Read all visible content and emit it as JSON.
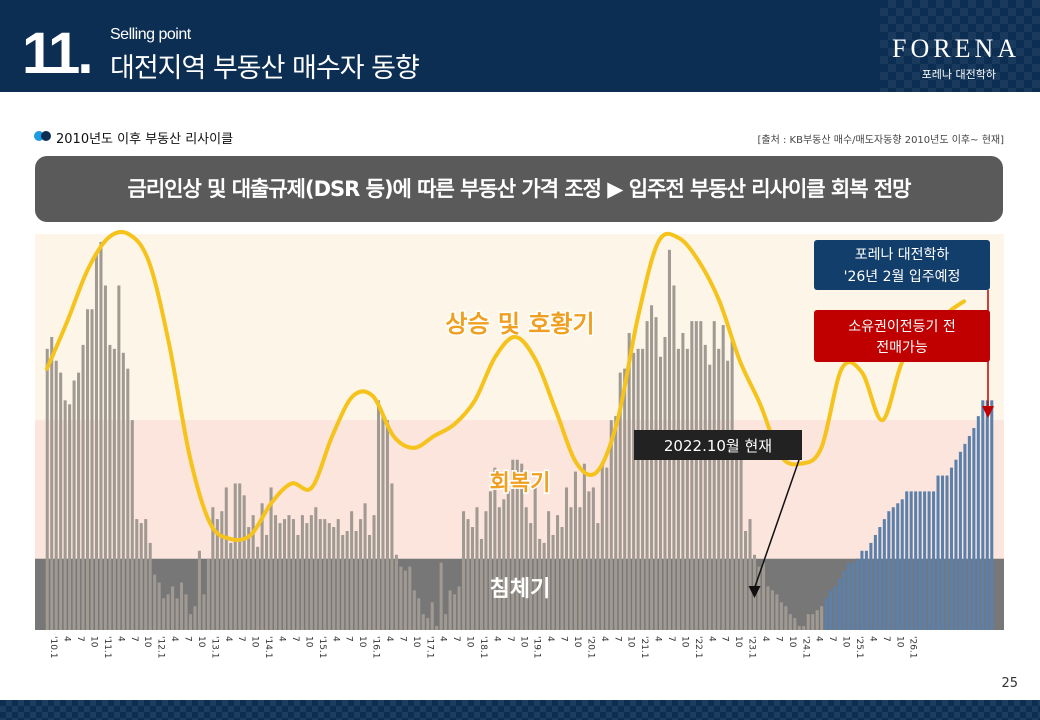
{
  "header": {
    "section_number": "11.",
    "section_subtitle": "Selling point",
    "section_title": "대전지역 부동산 매수자 동향",
    "brand": "FORENA",
    "brand_sub": "포레나 대전학하"
  },
  "section_label": "2010년도 이후 부동산 리사이클",
  "source": "[출처 : KB부동산 매수/매도자동향 2010년도 이후~ 현재]",
  "banner": "금리인상 및 대출규제(DSR 등)에 따른 부동산 가격 조정 ▶ 입주전 부동산 리사이클 회복 전망",
  "page_number": "25",
  "colors": {
    "header": "#0b2e52",
    "bar_history": "#a09a92",
    "bar_projection": "#5b80ac",
    "curve": "#f5c31c",
    "zone_boom": "#fdf6e8",
    "zone_recovery": "#fbe5dc",
    "zone_slump": "#777777",
    "zone_label": "#f0a020",
    "accent_red": "#c00000",
    "accent_navy": "#123e6b"
  },
  "chart_data": {
    "type": "bar",
    "title": "",
    "xlabel": "",
    "ylabel": "",
    "ylim": [
      0,
      100
    ],
    "x_tick_labels": [
      "'10.1",
      "4",
      "7",
      "10",
      "'11.1",
      "4",
      "7",
      "10",
      "'12.1",
      "4",
      "7",
      "10",
      "'13.1",
      "4",
      "7",
      "10",
      "'14.1",
      "4",
      "7",
      "10",
      "'15.1",
      "4",
      "7",
      "10",
      "'16.1",
      "4",
      "7",
      "10",
      "'17.1",
      "4",
      "7",
      "10",
      "'18.1",
      "4",
      "7",
      "10",
      "'19.1",
      "4",
      "7",
      "10",
      "'20.1",
      "4",
      "7",
      "10",
      "'21.1",
      "4",
      "7",
      "10",
      "'22.1",
      "4",
      "7",
      "10",
      "'23.1",
      "4",
      "7",
      "10",
      "'24.1",
      "4",
      "7",
      "10",
      "'25.1",
      "4",
      "7",
      "10",
      "'26.1"
    ],
    "zones": [
      {
        "label": "상승 및 호황기",
        "from": 53,
        "to": 100
      },
      {
        "label": "회복기",
        "from": 18,
        "to": 53
      },
      {
        "label": "침체기",
        "from": 0,
        "to": 18
      }
    ],
    "series": [
      {
        "values": [
          71,
          74,
          68,
          65,
          58,
          57,
          63,
          65,
          72,
          81,
          81,
          95,
          98,
          87,
          72,
          71,
          87,
          70,
          66,
          53,
          28,
          27,
          28,
          22,
          14,
          12,
          8,
          9,
          11,
          8,
          12,
          9,
          4,
          6,
          20,
          9,
          18,
          31,
          28,
          30,
          36,
          22,
          37,
          37,
          34,
          26,
          29,
          21,
          32,
          24,
          36,
          29,
          27,
          28,
          29,
          28,
          24,
          29,
          27,
          29,
          31,
          28,
          28,
          27,
          26,
          28,
          24,
          25,
          30,
          25,
          28,
          32,
          24,
          29,
          58,
          54,
          53,
          37,
          19,
          16,
          15,
          16,
          10,
          8,
          4,
          3,
          7,
          1,
          17,
          4,
          10,
          9,
          11,
          30,
          28,
          26,
          31,
          23,
          30,
          35,
          41,
          31,
          33,
          35,
          43,
          43,
          42,
          31,
          27,
          37,
          23,
          22,
          30,
          24,
          29,
          26,
          36,
          31,
          40,
          31,
          42,
          35,
          36,
          27,
          42,
          41,
          53,
          54,
          65,
          66,
          75,
          70,
          71,
          71,
          78,
          82,
          79,
          69,
          74,
          96,
          87,
          71,
          75,
          71,
          78,
          78,
          78,
          72,
          67,
          78,
          71,
          77,
          68,
          73,
          50,
          44,
          25,
          28,
          19,
          16,
          17,
          11,
          10,
          9,
          7,
          6,
          4,
          3,
          1,
          1,
          4,
          4,
          5,
          6,
          8,
          10,
          11,
          13,
          15,
          17,
          17,
          18,
          20,
          20,
          22,
          24,
          26,
          28,
          30,
          31,
          32,
          33,
          35,
          35,
          35,
          35,
          35,
          35,
          35,
          39,
          39,
          39,
          41,
          43,
          45,
          47,
          49,
          51,
          54,
          58,
          58,
          58
        ]
      }
    ],
    "projection_start_index": 174,
    "trend_curve": {
      "name": "",
      "values": [
        66,
        78,
        91,
        99,
        100,
        93,
        72,
        44,
        27,
        23,
        24,
        32,
        37,
        36,
        49,
        59,
        59,
        49,
        46,
        49,
        52,
        58,
        69,
        74,
        68,
        55,
        42,
        40,
        53,
        79,
        98,
        99,
        93,
        83,
        68,
        57,
        44,
        42,
        46,
        66,
        65,
        53,
        68,
        70,
        79,
        83
      ]
    },
    "annotations": [
      {
        "label": "2022.10월 현재",
        "at_index": 158
      },
      {
        "label": "포레나 대전학하 '26년 2월 입주예정",
        "at_index": 191
      },
      {
        "label": "소유권이전등기 전 전매가능",
        "at_index": 191
      }
    ]
  }
}
